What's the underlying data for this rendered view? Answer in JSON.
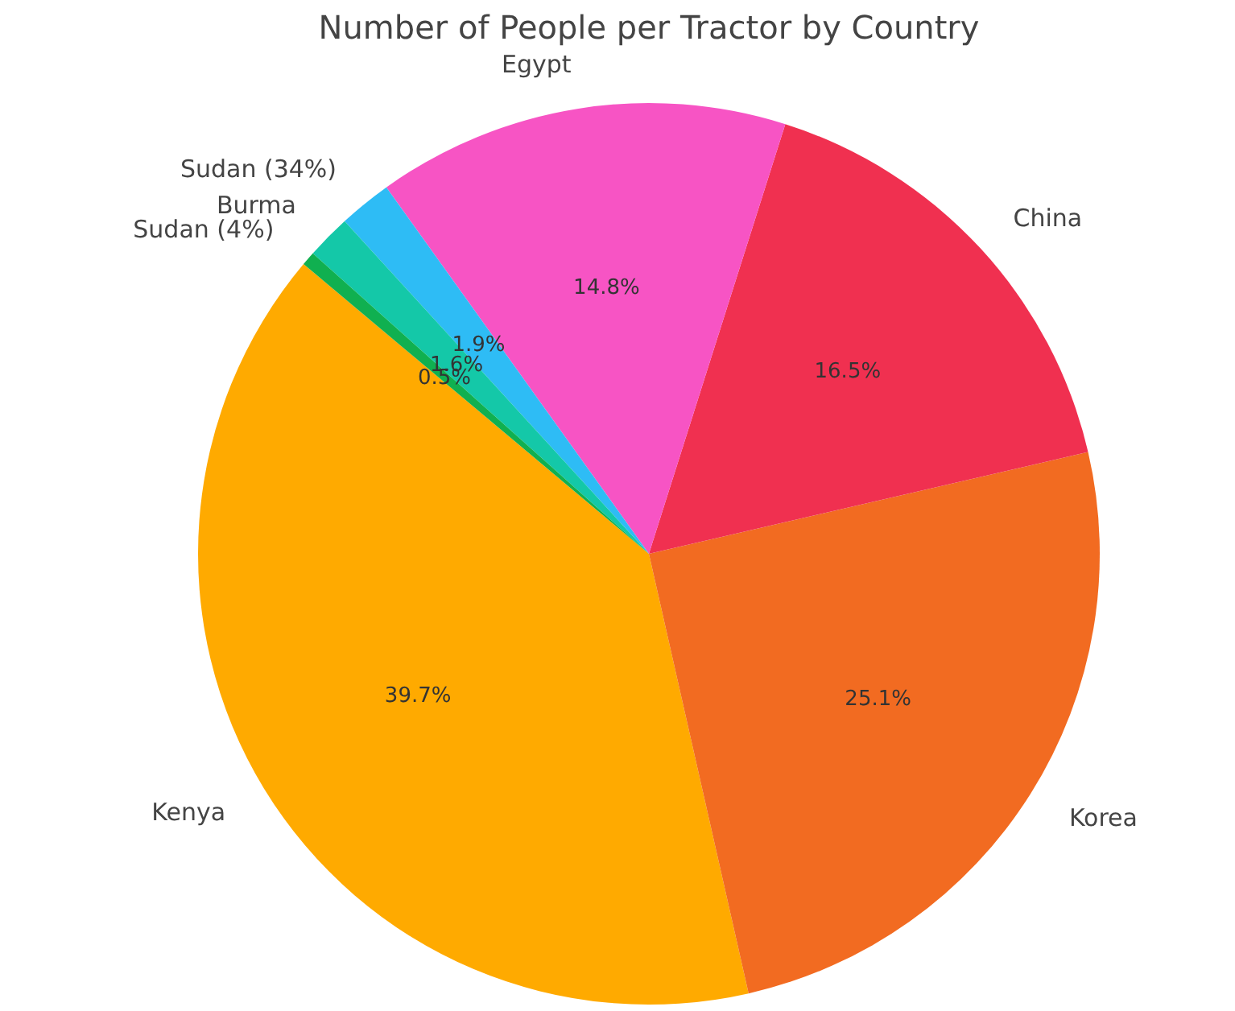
{
  "chart_data": {
    "type": "pie",
    "title": "Number of People per Tractor by Country",
    "categories": [
      "Kenya",
      "Korea",
      "China",
      "Egypt",
      "Sudan (34%)",
      "Burma",
      "Sudan (4%)"
    ],
    "values": [
      39.7,
      25.1,
      16.5,
      14.8,
      1.9,
      1.6,
      0.5
    ],
    "value_labels": [
      "39.7%",
      "25.1%",
      "16.5%",
      "14.8%",
      "1.9%",
      "1.6%",
      "0.5%"
    ],
    "colors": [
      "#ffaa00",
      "#f26b21",
      "#f03050",
      "#f754c4",
      "#2ebcf5",
      "#14c8a8",
      "#10b050"
    ]
  }
}
